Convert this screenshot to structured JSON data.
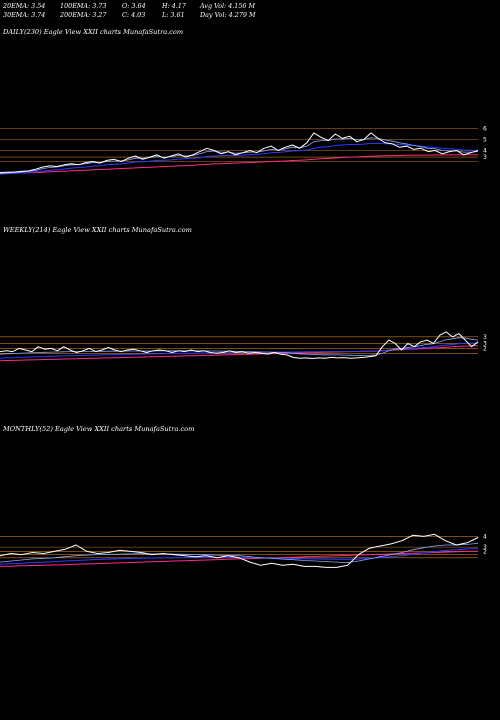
{
  "header": {
    "row1": {
      "ema20": "20EMA: 3.54",
      "ema100": "100EMA: 3.73",
      "open": "O: 3.64",
      "high": "H: 4.17",
      "avg_vol": "Avg Vol: 4.156  M"
    },
    "row2": {
      "ema30": "30EMA: 3.74",
      "ema200": "200EMA: 3.27",
      "close": "C: 4.03",
      "low": "L: 3.61",
      "day_vol": "Day Vol: 4.279 M"
    }
  },
  "colors": {
    "background": "#000000",
    "price": "#ffffff",
    "ema_blue": "#2a3cff",
    "ema_blue_light": "#8aa8ff",
    "ema_pink": "#ff2a88",
    "ema_magenta": "#d22ad2",
    "level_orange": "#c8781e"
  },
  "chart_data": [
    {
      "type": "line",
      "title": "DAILY(230) Eagle   View  XXII charts MunafaSutra.com",
      "y_ticks": [
        "6",
        "5",
        "4",
        "3"
      ],
      "y_ticks_extra": [
        "3"
      ],
      "levels": [
        6,
        5,
        4,
        3.4,
        3
      ],
      "ylim": [
        1.5,
        7.5
      ],
      "series": [
        {
          "role": "price",
          "values": [
            2.0,
            2.02,
            2.05,
            2.1,
            2.15,
            2.3,
            2.5,
            2.6,
            2.55,
            2.7,
            2.8,
            2.7,
            2.9,
            3.0,
            2.85,
            3.1,
            3.2,
            3.0,
            3.3,
            3.5,
            3.2,
            3.4,
            3.6,
            3.3,
            3.5,
            3.7,
            3.4,
            3.6,
            3.9,
            4.2,
            4.0,
            3.7,
            3.9,
            3.6,
            3.8,
            4.0,
            3.8,
            4.2,
            4.4,
            4.0,
            4.3,
            4.5,
            4.2,
            4.7,
            5.6,
            5.2,
            4.9,
            5.5,
            5.1,
            5.3,
            4.8,
            5.0,
            5.6,
            5.1,
            4.7,
            4.6,
            4.3,
            4.4,
            4.1,
            4.2,
            3.9,
            4.0,
            3.7,
            3.9,
            4.0,
            3.6,
            3.8,
            4.0
          ]
        },
        {
          "role": "ema_fast",
          "values": [
            1.9,
            1.95,
            2.0,
            2.05,
            2.1,
            2.2,
            2.35,
            2.45,
            2.5,
            2.6,
            2.7,
            2.72,
            2.8,
            2.9,
            2.92,
            3.0,
            3.05,
            3.05,
            3.15,
            3.3,
            3.3,
            3.35,
            3.45,
            3.4,
            3.45,
            3.55,
            3.5,
            3.55,
            3.7,
            3.9,
            3.95,
            3.85,
            3.85,
            3.75,
            3.78,
            3.85,
            3.85,
            3.95,
            4.1,
            4.05,
            4.15,
            4.3,
            4.25,
            4.4,
            4.8,
            4.9,
            4.9,
            5.05,
            5.05,
            5.1,
            5.0,
            5.0,
            5.15,
            5.1,
            4.95,
            4.85,
            4.7,
            4.6,
            4.45,
            4.35,
            4.2,
            4.15,
            4.0,
            3.95,
            3.95,
            3.85,
            3.85,
            3.9
          ]
        },
        {
          "role": "ema_slow_blue",
          "values": [
            1.85,
            1.88,
            1.92,
            1.96,
            2.0,
            2.06,
            2.14,
            2.2,
            2.25,
            2.32,
            2.4,
            2.45,
            2.5,
            2.58,
            2.62,
            2.7,
            2.75,
            2.78,
            2.85,
            2.95,
            2.98,
            3.02,
            3.1,
            3.12,
            3.15,
            3.22,
            3.25,
            3.28,
            3.35,
            3.45,
            3.5,
            3.52,
            3.55,
            3.55,
            3.58,
            3.62,
            3.65,
            3.7,
            3.8,
            3.82,
            3.88,
            3.95,
            3.98,
            4.05,
            4.2,
            4.3,
            4.35,
            4.45,
            4.5,
            4.55,
            4.55,
            4.58,
            4.65,
            4.65,
            4.62,
            4.6,
            4.55,
            4.5,
            4.45,
            4.4,
            4.32,
            4.28,
            4.2,
            4.15,
            4.12,
            4.05,
            4.02,
            4.0
          ]
        },
        {
          "role": "ema_200_pink",
          "values": [
            1.9,
            1.92,
            1.94,
            1.96,
            1.98,
            2.0,
            2.03,
            2.06,
            2.09,
            2.12,
            2.15,
            2.18,
            2.21,
            2.24,
            2.27,
            2.3,
            2.33,
            2.36,
            2.39,
            2.42,
            2.45,
            2.48,
            2.51,
            2.54,
            2.57,
            2.6,
            2.63,
            2.66,
            2.7,
            2.74,
            2.78,
            2.8,
            2.83,
            2.85,
            2.88,
            2.9,
            2.93,
            2.96,
            3.0,
            3.02,
            3.05,
            3.09,
            3.12,
            3.15,
            3.2,
            3.25,
            3.28,
            3.32,
            3.36,
            3.4,
            3.42,
            3.45,
            3.48,
            3.5,
            3.52,
            3.54,
            3.55,
            3.56,
            3.57,
            3.58,
            3.58,
            3.59,
            3.6,
            3.6,
            3.6,
            3.61,
            3.61,
            3.62
          ]
        }
      ]
    },
    {
      "type": "line",
      "title": "WEEKLY(214) Eagle   View  XXII charts MunafaSutra.com",
      "y_ticks": [
        "3",
        "3",
        "2"
      ],
      "levels": [
        3,
        2.6,
        2.3,
        2
      ],
      "ylim": [
        0.8,
        3.6
      ],
      "series": [
        {
          "role": "price",
          "values": [
            2.1,
            2.15,
            2.1,
            2.3,
            2.2,
            2.1,
            2.4,
            2.25,
            2.3,
            2.15,
            2.4,
            2.2,
            2.05,
            2.15,
            2.3,
            2.1,
            2.2,
            2.35,
            2.2,
            2.1,
            2.2,
            2.25,
            2.15,
            2.05,
            2.15,
            2.2,
            2.15,
            2.05,
            2.15,
            2.1,
            2.2,
            2.1,
            2.15,
            2.05,
            2.0,
            2.05,
            2.15,
            2.05,
            2.1,
            2.0,
            2.05,
            2.0,
            1.95,
            2.05,
            1.95,
            1.9,
            1.75,
            1.7,
            1.72,
            1.68,
            1.72,
            1.7,
            1.75,
            1.72,
            1.74,
            1.7,
            1.72,
            1.75,
            1.8,
            1.85,
            2.4,
            2.8,
            2.6,
            2.2,
            2.6,
            2.4,
            2.7,
            2.8,
            2.6,
            3.1,
            3.3,
            3.0,
            3.2,
            2.8,
            2.4,
            2.7
          ]
        },
        {
          "role": "ema_fast",
          "values": [
            1.95,
            1.97,
            1.98,
            2.0,
            2.02,
            2.03,
            2.05,
            2.06,
            2.07,
            2.08,
            2.09,
            2.1,
            2.1,
            2.11,
            2.11,
            2.12,
            2.12,
            2.13,
            2.13,
            2.13,
            2.14,
            2.14,
            2.14,
            2.14,
            2.14,
            2.15,
            2.15,
            2.15,
            2.15,
            2.15,
            2.15,
            2.15,
            2.15,
            2.14,
            2.14,
            2.13,
            2.13,
            2.12,
            2.11,
            2.1,
            2.09,
            2.08,
            2.07,
            2.06,
            2.05,
            2.03,
            2.0,
            1.97,
            1.95,
            1.93,
            1.92,
            1.91,
            1.9,
            1.9,
            1.89,
            1.88,
            1.87,
            1.87,
            1.88,
            1.9,
            2.0,
            2.15,
            2.25,
            2.28,
            2.35,
            2.4,
            2.47,
            2.55,
            2.58,
            2.7,
            2.82,
            2.88,
            2.95,
            2.93,
            2.85,
            2.8
          ]
        },
        {
          "role": "ema_slow_blue",
          "values": [
            1.7,
            1.72,
            1.73,
            1.75,
            1.76,
            1.78,
            1.79,
            1.8,
            1.82,
            1.83,
            1.84,
            1.85,
            1.86,
            1.87,
            1.88,
            1.89,
            1.9,
            1.91,
            1.92,
            1.93,
            1.94,
            1.94,
            1.95,
            1.96,
            1.97,
            1.97,
            1.98,
            1.99,
            1.99,
            2.0,
            2.0,
            2.01,
            2.02,
            2.02,
            2.03,
            2.03,
            2.04,
            2.04,
            2.05,
            2.05,
            2.06,
            2.06,
            2.07,
            2.07,
            2.08,
            2.08,
            2.08,
            2.08,
            2.09,
            2.09,
            2.09,
            2.1,
            2.1,
            2.1,
            2.1,
            2.11,
            2.11,
            2.11,
            2.12,
            2.13,
            2.16,
            2.2,
            2.23,
            2.25,
            2.28,
            2.3,
            2.33,
            2.37,
            2.4,
            2.45,
            2.5,
            2.54,
            2.58,
            2.6,
            2.61,
            2.62
          ]
        },
        {
          "role": "ema_200_pink",
          "values": [
            1.55,
            1.56,
            1.57,
            1.58,
            1.59,
            1.6,
            1.61,
            1.62,
            1.63,
            1.64,
            1.65,
            1.66,
            1.67,
            1.68,
            1.69,
            1.7,
            1.71,
            1.72,
            1.73,
            1.74,
            1.75,
            1.76,
            1.77,
            1.78,
            1.79,
            1.8,
            1.81,
            1.82,
            1.83,
            1.84,
            1.85,
            1.86,
            1.87,
            1.88,
            1.89,
            1.9,
            1.91,
            1.92,
            1.93,
            1.94,
            1.95,
            1.96,
            1.97,
            1.98,
            1.99,
            2.0,
            2.01,
            2.02,
            2.03,
            2.04,
            2.05,
            2.06,
            2.07,
            2.08,
            2.09,
            2.1,
            2.11,
            2.12,
            2.13,
            2.14,
            2.16,
            2.18,
            2.2,
            2.22,
            2.24,
            2.26,
            2.28,
            2.3,
            2.32,
            2.34,
            2.37,
            2.4,
            2.42,
            2.44,
            2.45,
            2.46
          ]
        }
      ]
    },
    {
      "type": "line",
      "title": "MONTHLY(52) Eagle   View  XXII charts MunafaSutra.com",
      "y_ticks": [
        "4",
        "3",
        "2"
      ],
      "levels": [
        4,
        3,
        2.6,
        2.3,
        2
      ],
      "ylim": [
        0.3,
        4.6
      ],
      "series": [
        {
          "role": "price",
          "values": [
            2.2,
            2.4,
            2.3,
            2.5,
            2.4,
            2.6,
            2.8,
            3.2,
            2.6,
            2.4,
            2.5,
            2.7,
            2.6,
            2.5,
            2.3,
            2.4,
            2.3,
            2.2,
            2.1,
            2.2,
            2.0,
            2.2,
            2.0,
            1.6,
            1.3,
            1.5,
            1.3,
            1.4,
            1.2,
            1.2,
            1.1,
            1.1,
            1.3,
            2.3,
            2.9,
            3.1,
            3.3,
            3.6,
            4.1,
            4.0,
            4.2,
            3.6,
            3.2,
            3.4,
            3.9
          ]
        },
        {
          "role": "ema_fast",
          "values": [
            1.6,
            1.7,
            1.8,
            1.9,
            1.95,
            2.0,
            2.1,
            2.2,
            2.25,
            2.3,
            2.32,
            2.35,
            2.37,
            2.38,
            2.37,
            2.37,
            2.35,
            2.33,
            2.3,
            2.28,
            2.25,
            2.22,
            2.2,
            2.1,
            2.0,
            1.95,
            1.88,
            1.82,
            1.75,
            1.7,
            1.65,
            1.6,
            1.55,
            1.7,
            1.9,
            2.1,
            2.3,
            2.5,
            2.75,
            2.95,
            3.1,
            3.2,
            3.2,
            3.25,
            3.35
          ]
        },
        {
          "role": "ema_slow_blue",
          "values": [
            1.4,
            1.45,
            1.5,
            1.55,
            1.6,
            1.65,
            1.7,
            1.75,
            1.8,
            1.85,
            1.88,
            1.91,
            1.94,
            1.96,
            1.98,
            2.0,
            2.01,
            2.02,
            2.03,
            2.03,
            2.03,
            2.03,
            2.03,
            2.02,
            2.0,
            1.98,
            1.96,
            1.94,
            1.92,
            1.9,
            1.88,
            1.86,
            1.85,
            1.88,
            1.95,
            2.02,
            2.1,
            2.2,
            2.32,
            2.45,
            2.58,
            2.68,
            2.75,
            2.82,
            2.9
          ]
        },
        {
          "role": "ema_200_pink",
          "values": [
            1.2,
            1.22,
            1.25,
            1.28,
            1.3,
            1.33,
            1.36,
            1.4,
            1.43,
            1.46,
            1.5,
            1.53,
            1.56,
            1.6,
            1.63,
            1.66,
            1.7,
            1.73,
            1.76,
            1.8,
            1.83,
            1.86,
            1.9,
            1.93,
            1.96,
            2.0,
            2.03,
            2.06,
            2.1,
            2.13,
            2.16,
            2.2,
            2.23,
            2.26,
            2.3,
            2.33,
            2.36,
            2.4,
            2.43,
            2.46,
            2.5,
            2.53,
            2.56,
            2.6,
            2.63
          ]
        }
      ]
    }
  ]
}
